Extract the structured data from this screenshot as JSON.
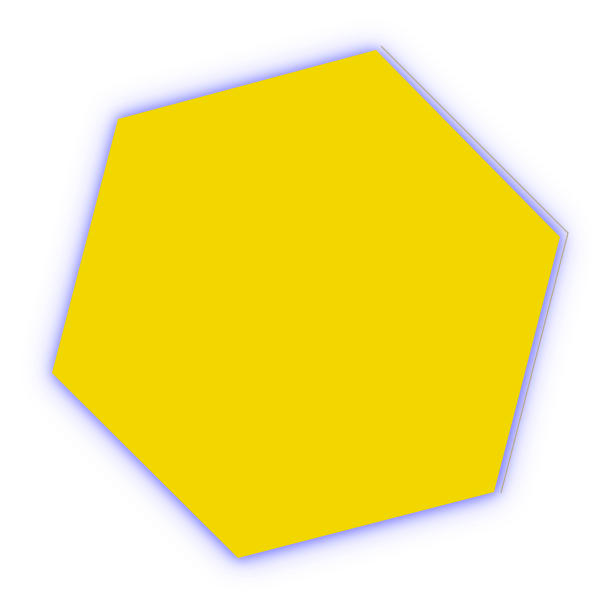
{
  "shape": {
    "kind": "hexagon",
    "fill_color": "#F2D600",
    "glow_color": "#5A5CFF",
    "edge_color": "#B8A88E"
  }
}
